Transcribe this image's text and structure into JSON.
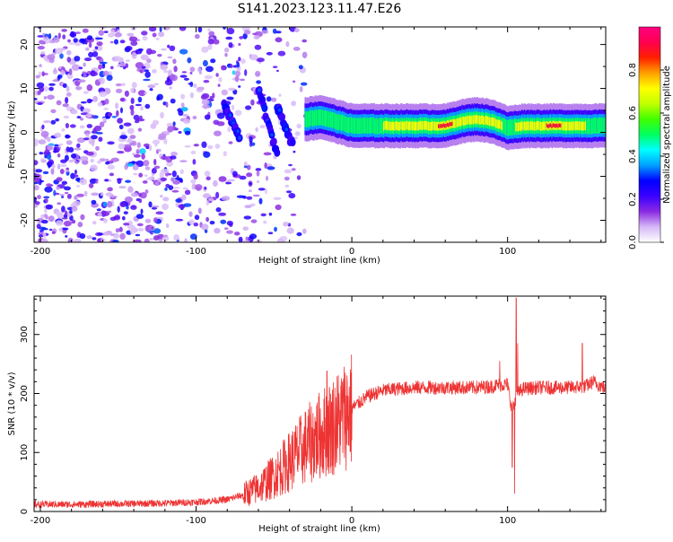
{
  "title": "S141.2023.123.11.47.E26",
  "chart_data": [
    {
      "type": "heatmap",
      "title": "S141.2023.123.11.47.E26",
      "xlabel": "Height of straight line (km)",
      "ylabel": "Frequency (Hz)",
      "xlim": [
        -204,
        163
      ],
      "ylim": [
        -25,
        24
      ],
      "x_ticks": [
        -200,
        -100,
        0,
        100
      ],
      "y_ticks": [
        -20,
        -10,
        0,
        10,
        20
      ],
      "colorbar": {
        "label": "Normalized spectral amplitude",
        "range": [
          0,
          1
        ],
        "ticks": [
          "0.0",
          "0.2",
          "0.4",
          "0.6",
          "0.8"
        ],
        "colors": [
          "#ffffff",
          "#d6b8f7",
          "#8a2be2",
          "#3b00ff",
          "#0000ff",
          "#00a0ff",
          "#00ffff",
          "#00ff60",
          "#40ff00",
          "#c0ff00",
          "#ffff00",
          "#ffa000",
          "#ff2000",
          "#ff0050",
          "#ff0080"
        ]
      },
      "band": {
        "x": [
          -30,
          -20,
          -10,
          0,
          20,
          40,
          60,
          70,
          80,
          90,
          100,
          110,
          130,
          150,
          163
        ],
        "freq": [
          3,
          3.5,
          2.5,
          1.5,
          1.5,
          1.5,
          1.5,
          2.5,
          3,
          2.5,
          1,
          1.5,
          1.5,
          1.5,
          1.5
        ],
        "amplitude": [
          0.5,
          0.6,
          0.55,
          0.6,
          0.65,
          0.7,
          0.9,
          0.8,
          0.85,
          0.75,
          0.6,
          0.7,
          0.9,
          0.65,
          0.6
        ]
      },
      "noise_region_x": [
        -204,
        -30
      ],
      "streaks": [
        {
          "x": [
            -60,
            -48
          ],
          "freq": [
            10,
            -5
          ]
        },
        {
          "x": [
            -48,
            -38
          ],
          "freq": [
            6,
            -3
          ]
        },
        {
          "x": [
            -82,
            -72
          ],
          "freq": [
            6,
            -1
          ]
        }
      ]
    },
    {
      "type": "line",
      "xlabel": "Height of straight line (km)",
      "ylabel": "SNR (10 * v/v)",
      "xlim": [
        -204,
        163
      ],
      "ylim": [
        0,
        365
      ],
      "x_ticks": [
        -200,
        -100,
        0,
        100
      ],
      "y_ticks": [
        0,
        100,
        200,
        300
      ],
      "color": "#ee3333",
      "series": [
        {
          "name": "SNR",
          "x": [
            -204,
            -180,
            -150,
            -120,
            -100,
            -80,
            -70,
            -60,
            -50,
            -40,
            -30,
            -20,
            -10,
            0,
            10,
            20,
            30,
            40,
            60,
            80,
            90,
            95,
            100,
            103,
            106,
            110,
            120,
            140,
            150,
            155,
            163
          ],
          "y": [
            12,
            12,
            13,
            14,
            16,
            20,
            28,
            40,
            60,
            85,
            110,
            130,
            150,
            175,
            195,
            205,
            208,
            210,
            210,
            210,
            212,
            215,
            215,
            170,
            200,
            208,
            210,
            210,
            212,
            220,
            208
          ]
        }
      ],
      "spikes": [
        {
          "x": -16,
          "y": 238
        },
        {
          "x": -31,
          "y": 110
        },
        {
          "x": 95,
          "y": 255
        },
        {
          "x": 103,
          "y": 75
        },
        {
          "x": 104.5,
          "y": 30
        },
        {
          "x": 105.5,
          "y": 362
        },
        {
          "x": 106.5,
          "y": 285
        },
        {
          "x": 148,
          "y": 285
        }
      ]
    }
  ]
}
